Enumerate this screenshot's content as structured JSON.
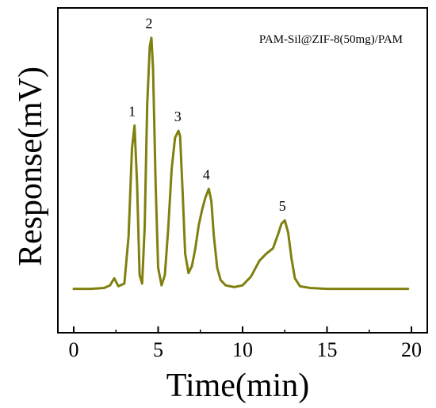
{
  "chart_data": {
    "type": "line",
    "legend_text": "PAM-Sil@ZIF-8(50mg)/PAM",
    "legend_position": "top-right",
    "xlabel": "Time(min)",
    "ylabel": "Response(mV)",
    "xlim": [
      0,
      20
    ],
    "ylim": [
      -0.25,
      1.6
    ],
    "x_ticks": [
      0,
      5,
      10,
      15,
      20
    ],
    "x_tick_labels": [
      "0",
      "5",
      "10",
      "15",
      "20"
    ],
    "y_ticks_shown": false,
    "grid": false,
    "line_color": "#808010",
    "peaks": [
      {
        "label": "1",
        "x": 3.6,
        "y": 0.93
      },
      {
        "label": "2",
        "x": 4.6,
        "y": 1.43
      },
      {
        "label": "3",
        "x": 6.3,
        "y": 0.9
      },
      {
        "label": "4",
        "x": 8.0,
        "y": 0.57
      },
      {
        "label": "5",
        "x": 12.5,
        "y": 0.39
      }
    ],
    "series": [
      {
        "x": [
          0,
          1,
          1.8,
          2.15,
          2.4,
          2.65,
          3.0,
          3.25,
          3.45,
          3.6,
          3.75,
          3.9,
          4.05,
          4.2,
          4.35,
          4.5,
          4.6,
          4.7,
          4.85,
          5.0,
          5.2,
          5.4,
          5.6,
          5.8,
          6.0,
          6.2,
          6.3,
          6.45,
          6.6,
          6.8,
          7.0,
          7.2,
          7.4,
          7.6,
          7.8,
          8.0,
          8.15,
          8.3,
          8.5,
          8.7,
          9.0,
          9.5,
          10.0,
          10.5,
          11.0,
          11.4,
          11.8,
          12.1,
          12.3,
          12.5,
          12.7,
          12.9,
          13.1,
          13.4,
          14.0,
          15.0,
          17.0,
          19.8
        ],
        "y": [
          0.0,
          0.0,
          0.005,
          0.02,
          0.06,
          0.015,
          0.03,
          0.3,
          0.8,
          0.93,
          0.6,
          0.08,
          0.03,
          0.35,
          1.05,
          1.38,
          1.43,
          1.25,
          0.6,
          0.12,
          0.02,
          0.08,
          0.35,
          0.68,
          0.86,
          0.9,
          0.87,
          0.55,
          0.2,
          0.09,
          0.13,
          0.23,
          0.36,
          0.45,
          0.52,
          0.57,
          0.5,
          0.3,
          0.12,
          0.05,
          0.02,
          0.01,
          0.02,
          0.07,
          0.16,
          0.2,
          0.23,
          0.31,
          0.37,
          0.39,
          0.32,
          0.17,
          0.06,
          0.015,
          0.005,
          0.0,
          0.0,
          0.0
        ]
      }
    ]
  }
}
